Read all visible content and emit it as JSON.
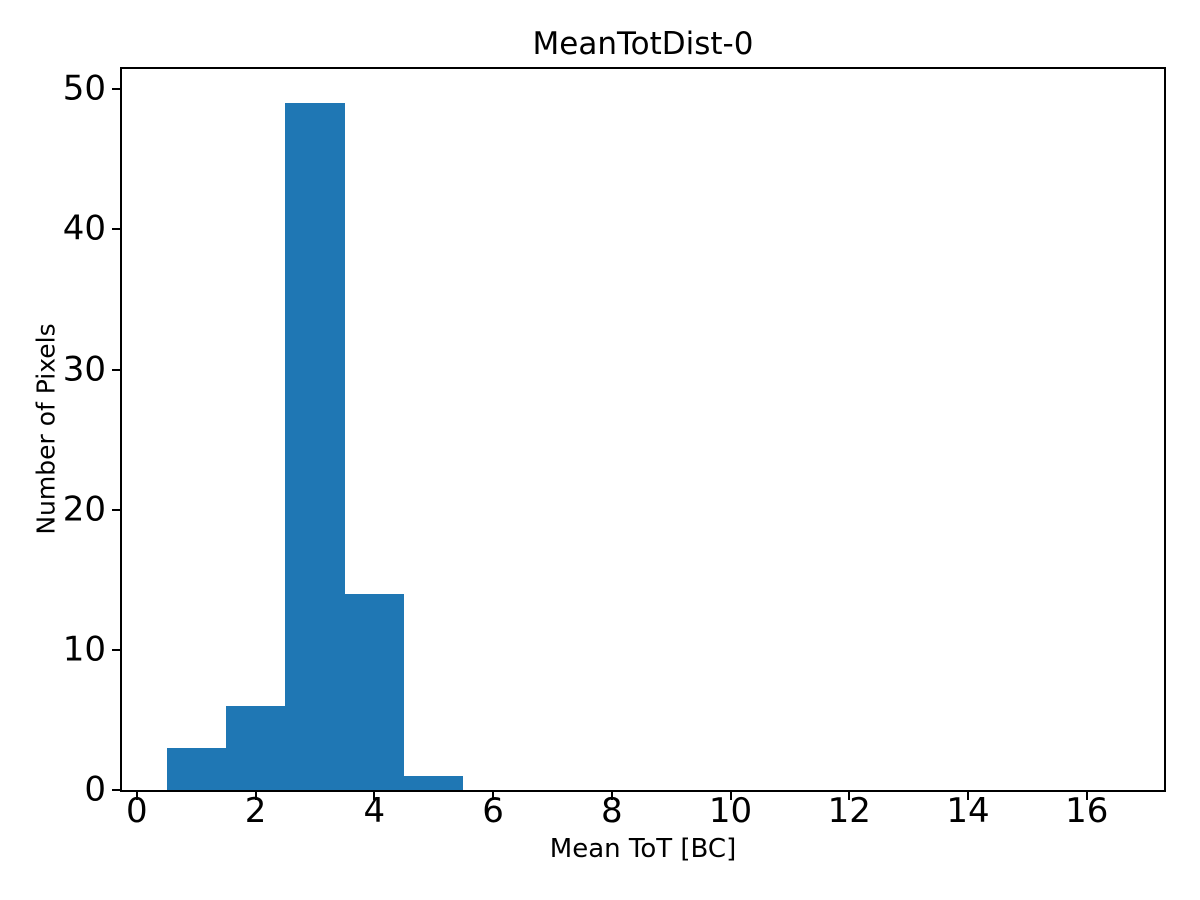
{
  "chart_data": {
    "type": "bar",
    "subtype": "histogram",
    "title": "MeanTotDist-0",
    "xlabel": "Mean ToT [BC]",
    "ylabel": "Number of Pixels",
    "bin_edges": [
      0.5,
      1.5,
      2.5,
      3.5,
      4.5,
      5.5
    ],
    "counts": [
      3,
      6,
      49,
      14,
      1
    ],
    "xticks": [
      0,
      2,
      4,
      6,
      8,
      10,
      12,
      14,
      16
    ],
    "yticks": [
      0,
      10,
      20,
      30,
      40,
      50
    ],
    "xlim": [
      -0.25,
      17.3
    ],
    "ylim": [
      0,
      51.45
    ],
    "bar_color": "#1f77b4",
    "axis_color": "#000000",
    "text_color": "#000000",
    "background_color": "#ffffff",
    "grid": false,
    "legend": null
  }
}
